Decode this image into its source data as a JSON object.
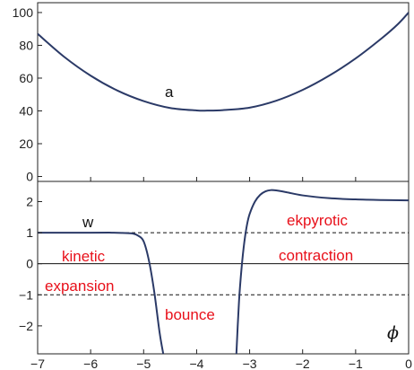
{
  "colors": {
    "curve": "#2b3a67",
    "annotation": "#e8101a",
    "frame": "#222222",
    "reference": "#111111"
  },
  "chart_data": [
    {
      "type": "line",
      "panel": "top",
      "xlabel": "",
      "ylabel": "",
      "xlim": [
        -7,
        0
      ],
      "ylim": [
        -3,
        106
      ],
      "yticks": [
        0,
        20,
        40,
        60,
        80,
        100
      ],
      "grid": false,
      "curve_label": "a",
      "series": [
        {
          "x": [
            -7,
            -6.5,
            -6,
            -5.5,
            -5,
            -4.5,
            -4,
            -3.8,
            -3.5,
            -3,
            -2.5,
            -2,
            -1.5,
            -1,
            -0.5,
            -0.2,
            0
          ],
          "values": [
            87,
            73,
            61.5,
            52.5,
            46,
            41.8,
            40.3,
            40.2,
            40.5,
            42,
            46.2,
            52.8,
            61.5,
            72,
            84.5,
            93,
            100
          ]
        }
      ]
    },
    {
      "type": "line",
      "panel": "bottom",
      "xlabel": "ϕ",
      "ylabel": "",
      "xlim": [
        -7,
        0
      ],
      "ylim": [
        -2.9,
        2.65
      ],
      "xticks": [
        -7,
        -6,
        -5,
        -4,
        -3,
        -2,
        -1,
        0
      ],
      "yticks": [
        -2,
        -1,
        0,
        1,
        2
      ],
      "grid": false,
      "reference_lines": [
        {
          "y": 1,
          "style": "dashed"
        },
        {
          "y": 0,
          "style": "solid"
        },
        {
          "y": -1,
          "style": "dashed"
        }
      ],
      "curve_label": "w",
      "annotations": [
        "kinetic",
        "expansion",
        "bounce",
        "ekpyrotic",
        "contraction"
      ],
      "series": [
        {
          "segment": "left",
          "x": [
            -7,
            -6,
            -5.6,
            -5.4,
            -5.2,
            -5.1,
            -5.0,
            -4.9,
            -4.8,
            -4.7,
            -4.63
          ],
          "values": [
            1,
            1,
            1,
            0.99,
            0.97,
            0.9,
            0.72,
            0.1,
            -0.9,
            -2.2,
            -2.9
          ]
        },
        {
          "segment": "right",
          "x": [
            -3.25,
            -3.2,
            -3.15,
            -3.1,
            -3.05,
            -3.0,
            -2.9,
            -2.8,
            -2.7,
            -2.6,
            -2.5,
            -2.3,
            -2.0,
            -1.5,
            -1.0,
            -0.5,
            0
          ],
          "values": [
            -2.9,
            -1.2,
            -0.1,
            0.7,
            1.25,
            1.6,
            2.0,
            2.22,
            2.33,
            2.37,
            2.36,
            2.3,
            2.2,
            2.11,
            2.07,
            2.05,
            2.04
          ]
        }
      ]
    }
  ]
}
